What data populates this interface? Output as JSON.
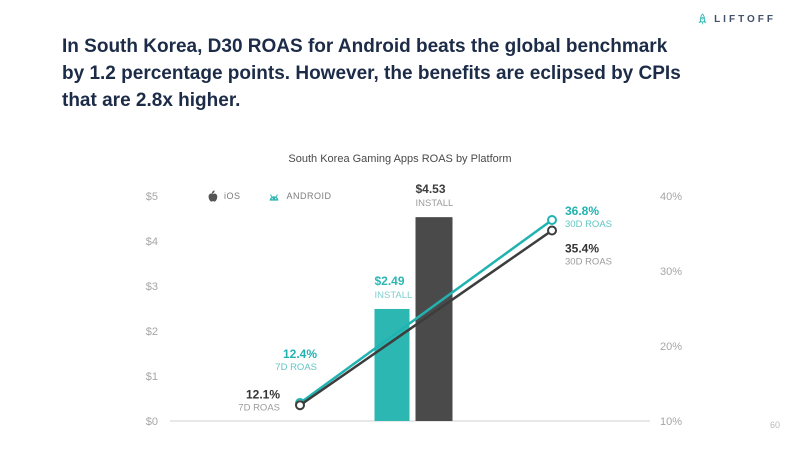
{
  "logo": {
    "text": "LIFTOFF"
  },
  "headline": {
    "lines": [
      "In South Korea, D30 ROAS for Android beats the global benchmark",
      "by 1.2 percentage points. However, the benefits are eclipsed by CPIs",
      "that are 2.8x higher."
    ]
  },
  "page_number": "60",
  "chart_data": {
    "type": "combo-bar-line",
    "title": "South Korea Gaming Apps ROAS by Platform",
    "legend": [
      {
        "label": "iOS",
        "icon": "apple-icon",
        "color": "#555555"
      },
      {
        "label": "ANDROID",
        "icon": "android-icon",
        "color": "#2cb7b3"
      }
    ],
    "left_axis": {
      "ticks": [
        "$0",
        "$1",
        "$2",
        "$3",
        "$4",
        "$5"
      ],
      "values": [
        0,
        1,
        2,
        3,
        4,
        5
      ],
      "min": 0,
      "max": 5
    },
    "right_axis": {
      "ticks": [
        "10%",
        "20%",
        "30%",
        "40%"
      ],
      "values": [
        10,
        20,
        30,
        40
      ],
      "min": 10,
      "max": 40
    },
    "bars": [
      {
        "platform": "ANDROID",
        "value": 2.49,
        "label": "$2.49",
        "sublabel": "INSTALL",
        "color": "#2cb7b3",
        "label_color": "#2cb7b3",
        "sublabel_color": "#7fd0cd"
      },
      {
        "platform": "iOS",
        "value": 4.53,
        "label": "$4.53",
        "sublabel": "INSTALL",
        "color": "#4a4a4a",
        "label_color": "#3d3d3d",
        "sublabel_color": "#9b9b9b"
      }
    ],
    "lines": [
      {
        "platform": "ANDROID",
        "color": "#21b3b1",
        "label_color": "#21b3b1",
        "sublabel_color": "#5fc6c3",
        "points": [
          {
            "value": 12.4,
            "label": "12.4%",
            "sublabel": "7D ROAS"
          },
          {
            "value": 36.8,
            "label": "36.8%",
            "sublabel": "30D ROAS"
          }
        ]
      },
      {
        "platform": "iOS",
        "color": "#3d3d3d",
        "label_color": "#333333",
        "sublabel_color": "#9b9b9b",
        "points": [
          {
            "value": 12.1,
            "label": "12.1%",
            "sublabel": "7D ROAS"
          },
          {
            "value": 35.4,
            "label": "35.4%",
            "sublabel": "30D ROAS"
          }
        ]
      }
    ]
  }
}
